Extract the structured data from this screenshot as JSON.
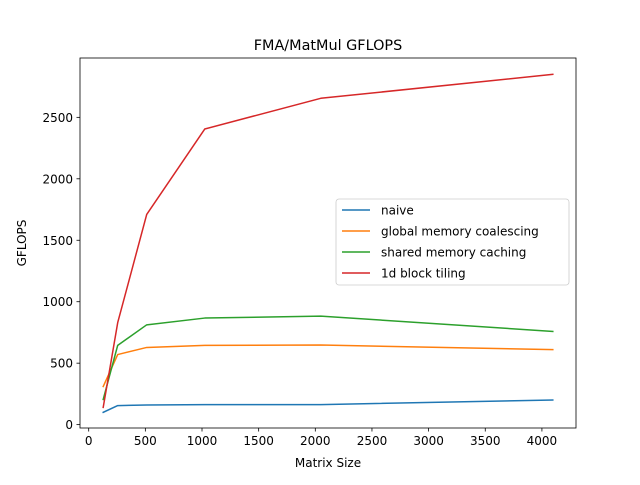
{
  "chart_data": {
    "type": "line",
    "title": "FMA/MatMul GFLOPS",
    "xlabel": "Matrix Size",
    "ylabel": "GFLOPS",
    "xlim": [
      -76.8,
      4300.8
    ],
    "ylim": [
      -27.4,
      2982.8
    ],
    "xticks": [
      0,
      500,
      1000,
      1500,
      2000,
      2500,
      3000,
      3500,
      4000
    ],
    "xtick_labels": [
      "0",
      "500",
      "1000",
      "1500",
      "2000",
      "2500",
      "3000",
      "3500",
      "4000"
    ],
    "yticks": [
      0,
      500,
      1000,
      1500,
      2000,
      2500
    ],
    "ytick_labels": [
      "0",
      "500",
      "1000",
      "1500",
      "2000",
      "2500"
    ],
    "grid": false,
    "legend_position": "center-right",
    "x": [
      128,
      256,
      512,
      1024,
      2048,
      4096
    ],
    "series": [
      {
        "name": "naive",
        "color": "#1f77b4",
        "values": [
          100,
          155,
          160,
          163,
          163,
          200
        ]
      },
      {
        "name": "global memory coalescing",
        "color": "#ff7f0e",
        "values": [
          310,
          570,
          628,
          645,
          648,
          610
        ]
      },
      {
        "name": "shared memory caching",
        "color": "#2ca02c",
        "values": [
          205,
          645,
          812,
          867,
          883,
          758
        ]
      },
      {
        "name": "1d block tiling",
        "color": "#d62728",
        "values": [
          140,
          830,
          1710,
          2405,
          2655,
          2850
        ]
      }
    ]
  }
}
